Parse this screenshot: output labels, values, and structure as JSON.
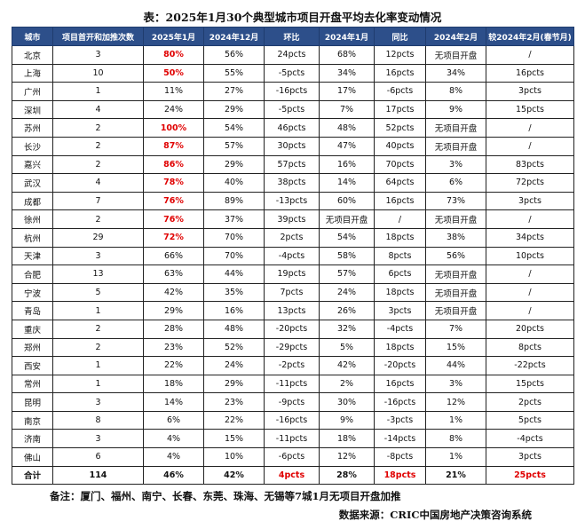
{
  "title": "表：2025年1月30个典型城市项目开盘平均去化率变动情况",
  "columns": [
    "城市",
    "项目首开和加推次数",
    "2025年1月",
    "2024年12月",
    "环比",
    "2024年1月",
    "同比",
    "2024年2月",
    "较2024年2月(春节月)"
  ],
  "rows": [
    {
      "city": "北京",
      "count": "3",
      "jan25": "80%",
      "dec24": "56%",
      "mom": "24pcts",
      "jan24": "68%",
      "yoy": "12pcts",
      "feb24": "无项目开盘",
      "vs_feb24": "/",
      "red": true
    },
    {
      "city": "上海",
      "count": "10",
      "jan25": "50%",
      "dec24": "55%",
      "mom": "-5pcts",
      "jan24": "34%",
      "yoy": "16pcts",
      "feb24": "34%",
      "vs_feb24": "16pcts",
      "red": true
    },
    {
      "city": "广州",
      "count": "1",
      "jan25": "11%",
      "dec24": "27%",
      "mom": "-16pcts",
      "jan24": "17%",
      "yoy": "-6pcts",
      "feb24": "8%",
      "vs_feb24": "3pcts",
      "red": false
    },
    {
      "city": "深圳",
      "count": "4",
      "jan25": "24%",
      "dec24": "29%",
      "mom": "-5pcts",
      "jan24": "7%",
      "yoy": "17pcts",
      "feb24": "9%",
      "vs_feb24": "15pcts",
      "red": false
    },
    {
      "city": "苏州",
      "count": "2",
      "jan25": "100%",
      "dec24": "54%",
      "mom": "46pcts",
      "jan24": "48%",
      "yoy": "52pcts",
      "feb24": "无项目开盘",
      "vs_feb24": "/",
      "red": true
    },
    {
      "city": "长沙",
      "count": "2",
      "jan25": "87%",
      "dec24": "57%",
      "mom": "30pcts",
      "jan24": "47%",
      "yoy": "40pcts",
      "feb24": "无项目开盘",
      "vs_feb24": "/",
      "red": true
    },
    {
      "city": "嘉兴",
      "count": "2",
      "jan25": "86%",
      "dec24": "29%",
      "mom": "57pcts",
      "jan24": "16%",
      "yoy": "70pcts",
      "feb24": "3%",
      "vs_feb24": "83pcts",
      "red": true
    },
    {
      "city": "武汉",
      "count": "4",
      "jan25": "78%",
      "dec24": "40%",
      "mom": "38pcts",
      "jan24": "14%",
      "yoy": "64pcts",
      "feb24": "6%",
      "vs_feb24": "72pcts",
      "red": true
    },
    {
      "city": "成都",
      "count": "7",
      "jan25": "76%",
      "dec24": "89%",
      "mom": "-13pcts",
      "jan24": "60%",
      "yoy": "16pcts",
      "feb24": "73%",
      "vs_feb24": "3pcts",
      "red": true
    },
    {
      "city": "徐州",
      "count": "2",
      "jan25": "76%",
      "dec24": "37%",
      "mom": "39pcts",
      "jan24": "无项目开盘",
      "yoy": "/",
      "feb24": "无项目开盘",
      "vs_feb24": "/",
      "red": true
    },
    {
      "city": "杭州",
      "count": "29",
      "jan25": "72%",
      "dec24": "70%",
      "mom": "2pcts",
      "jan24": "54%",
      "yoy": "18pcts",
      "feb24": "38%",
      "vs_feb24": "34pcts",
      "red": true
    },
    {
      "city": "天津",
      "count": "3",
      "jan25": "66%",
      "dec24": "70%",
      "mom": "-4pcts",
      "jan24": "58%",
      "yoy": "8pcts",
      "feb24": "56%",
      "vs_feb24": "10pcts",
      "red": false
    },
    {
      "city": "合肥",
      "count": "13",
      "jan25": "63%",
      "dec24": "44%",
      "mom": "19pcts",
      "jan24": "57%",
      "yoy": "6pcts",
      "feb24": "无项目开盘",
      "vs_feb24": "/",
      "red": false
    },
    {
      "city": "宁波",
      "count": "5",
      "jan25": "42%",
      "dec24": "35%",
      "mom": "7pcts",
      "jan24": "24%",
      "yoy": "18pcts",
      "feb24": "无项目开盘",
      "vs_feb24": "/",
      "red": false
    },
    {
      "city": "青岛",
      "count": "1",
      "jan25": "29%",
      "dec24": "16%",
      "mom": "13pcts",
      "jan24": "26%",
      "yoy": "3pcts",
      "feb24": "无项目开盘",
      "vs_feb24": "/",
      "red": false
    },
    {
      "city": "重庆",
      "count": "2",
      "jan25": "28%",
      "dec24": "48%",
      "mom": "-20pcts",
      "jan24": "32%",
      "yoy": "-4pcts",
      "feb24": "7%",
      "vs_feb24": "20pcts",
      "red": false
    },
    {
      "city": "郑州",
      "count": "2",
      "jan25": "23%",
      "dec24": "52%",
      "mom": "-29pcts",
      "jan24": "5%",
      "yoy": "18pcts",
      "feb24": "15%",
      "vs_feb24": "8pcts",
      "red": false
    },
    {
      "city": "西安",
      "count": "1",
      "jan25": "22%",
      "dec24": "24%",
      "mom": "-2pcts",
      "jan24": "42%",
      "yoy": "-20pcts",
      "feb24": "44%",
      "vs_feb24": "-22pcts",
      "red": false
    },
    {
      "city": "常州",
      "count": "1",
      "jan25": "18%",
      "dec24": "29%",
      "mom": "-11pcts",
      "jan24": "2%",
      "yoy": "16pcts",
      "feb24": "3%",
      "vs_feb24": "15pcts",
      "red": false
    },
    {
      "city": "昆明",
      "count": "3",
      "jan25": "14%",
      "dec24": "23%",
      "mom": "-9pcts",
      "jan24": "30%",
      "yoy": "-16pcts",
      "feb24": "12%",
      "vs_feb24": "2pcts",
      "red": false
    },
    {
      "city": "南京",
      "count": "8",
      "jan25": "6%",
      "dec24": "22%",
      "mom": "-16pcts",
      "jan24": "9%",
      "yoy": "-3pcts",
      "feb24": "1%",
      "vs_feb24": "5pcts",
      "red": false
    },
    {
      "city": "济南",
      "count": "3",
      "jan25": "4%",
      "dec24": "15%",
      "mom": "-11pcts",
      "jan24": "18%",
      "yoy": "-14pcts",
      "feb24": "8%",
      "vs_feb24": "-4pcts",
      "red": false
    },
    {
      "city": "佛山",
      "count": "6",
      "jan25": "4%",
      "dec24": "10%",
      "mom": "-6pcts",
      "jan24": "12%",
      "yoy": "-8pcts",
      "feb24": "1%",
      "vs_feb24": "3pcts",
      "red": false
    }
  ],
  "total": {
    "city": "合计",
    "count": "114",
    "jan25": "46%",
    "dec24": "42%",
    "mom": "4pcts",
    "jan24": "28%",
    "yoy": "18pcts",
    "feb24": "21%",
    "vs_feb24": "25pcts"
  },
  "note": "备注：厦门、福州、南宁、长春、东莞、珠海、无锡等7城1月无项目开盘加推",
  "source": "数据来源：CRIC中国房地产决策咨询系统",
  "colors": {
    "header_bg": "#2d4f8a",
    "highlight": "#e00000"
  }
}
